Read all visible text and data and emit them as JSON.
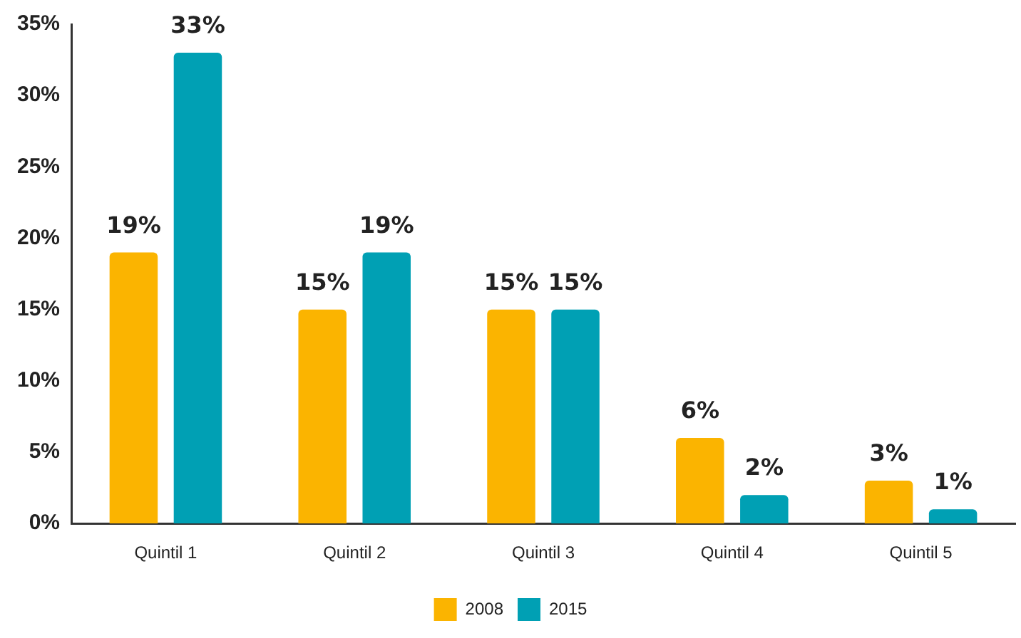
{
  "chart_data": {
    "type": "bar",
    "categories": [
      "Quintil 1",
      "Quintil 2",
      "Quintil 3",
      "Quintil 4",
      "Quintil 5"
    ],
    "series": [
      {
        "name": "2008",
        "color": "#fbb400",
        "values": [
          19,
          15,
          15,
          6,
          3
        ],
        "value_labels": [
          "19%",
          "15%",
          "15%",
          "6%",
          "3%"
        ]
      },
      {
        "name": "2015",
        "color": "#00a0b4",
        "values": [
          33,
          19,
          15,
          2,
          1
        ],
        "value_labels": [
          "33%",
          "19%",
          "15%",
          "2%",
          "1%"
        ]
      }
    ],
    "ylim": [
      0,
      35
    ],
    "yticks": [
      {
        "value": 0,
        "label": "0%"
      },
      {
        "value": 5,
        "label": "5%"
      },
      {
        "value": 10,
        "label": "10%"
      },
      {
        "value": 15,
        "label": "15%"
      },
      {
        "value": 20,
        "label": "20%"
      },
      {
        "value": 25,
        "label": "25%"
      },
      {
        "value": 30,
        "label": "30%"
      },
      {
        "value": 35,
        "label": "35%"
      }
    ],
    "grid": false,
    "legend": "bottom"
  }
}
